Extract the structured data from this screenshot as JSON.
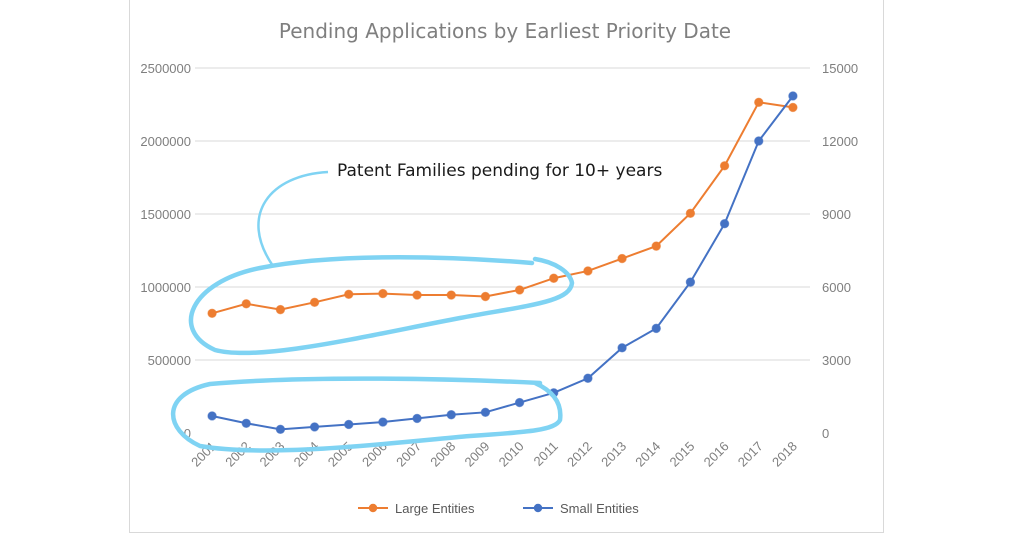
{
  "chart_data": {
    "type": "line",
    "title": "Pending Applications by Earliest Priority Date",
    "x": [
      "2001",
      "2002",
      "2003",
      "2004",
      "2005",
      "2006",
      "2007",
      "2008",
      "2009",
      "2010",
      "2011",
      "2012",
      "2013",
      "2014",
      "2015",
      "2016",
      "2017",
      "2018"
    ],
    "y_left": {
      "ticks": [
        "0",
        "500000",
        "1000000",
        "1500000",
        "2000000",
        "2500000"
      ],
      "range": [
        0,
        2500000
      ]
    },
    "y_right": {
      "ticks": [
        "0",
        "3000",
        "6000",
        "9000",
        "12000",
        "15000"
      ],
      "range": [
        0,
        15000
      ]
    },
    "grid": true,
    "legend_position": "bottom",
    "series": [
      {
        "name": "Large Entities",
        "axis": "left",
        "color": "#ed7d31",
        "values": [
          820000,
          885000,
          845000,
          895000,
          950000,
          955000,
          945000,
          945000,
          935000,
          980000,
          1060000,
          1110000,
          1195000,
          1280000,
          1505000,
          1830000,
          2265000,
          2230000
        ]
      },
      {
        "name": "Small Entities",
        "axis": "right",
        "color": "#4472c4",
        "values": [
          700,
          400,
          150,
          250,
          350,
          450,
          600,
          750,
          850,
          1250,
          1650,
          2250,
          3500,
          4300,
          6200,
          8600,
          12000,
          13850
        ]
      }
    ],
    "annotation": {
      "text": "Patent Families pending for 10+ years",
      "highlight_color": "#7fd3f3"
    }
  }
}
